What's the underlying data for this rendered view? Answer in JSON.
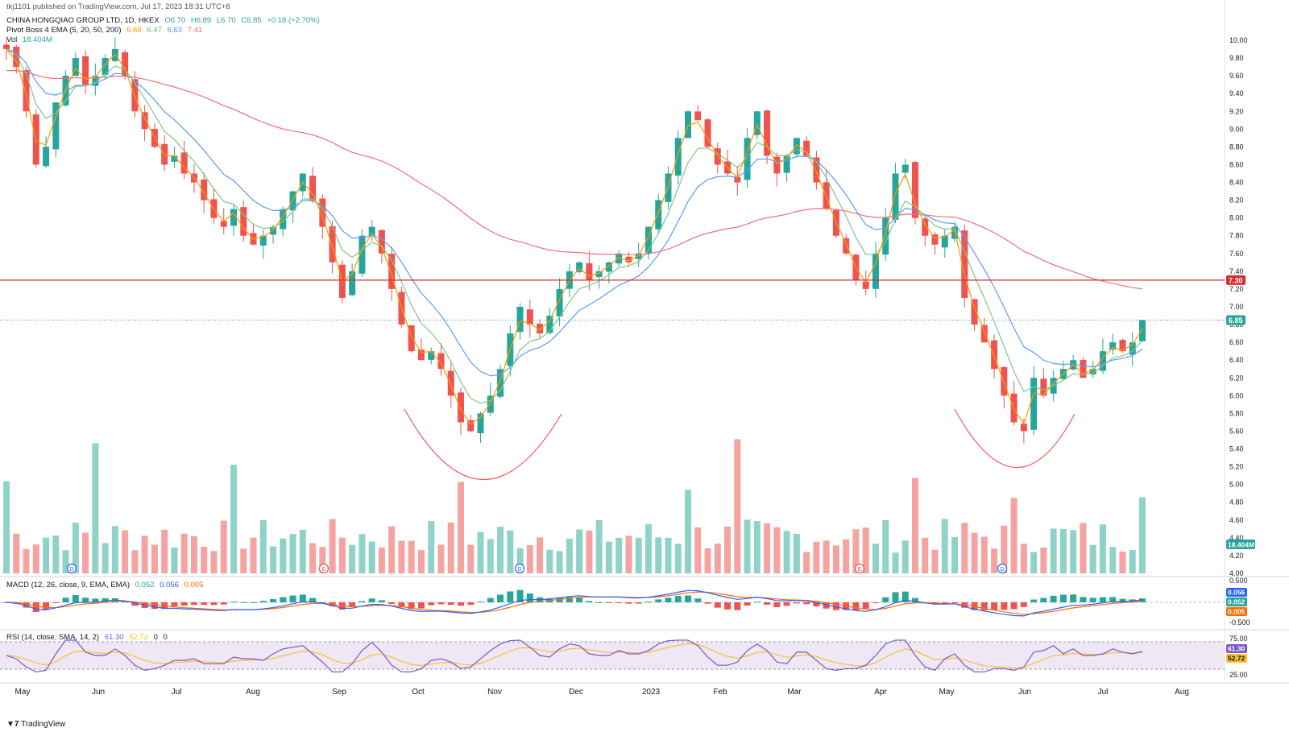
{
  "publish_line": "tkj1101 published on TradingView.com, Jul 17, 2023 18:31 UTC+8",
  "symbol_line": {
    "name": "CHINA HONGQIAO GROUP LTD, 1D, HKEX",
    "o": "O6.70",
    "h": "H6.89",
    "l": "L6.70",
    "c": "C6.85",
    "chg": "+0.18 (+2.70%)"
  },
  "ema_line": {
    "label": "Pivot Boss 4 EMA (5, 20, 50, 200)",
    "v1": "6.68",
    "v2": "6.47",
    "v3": "6.63",
    "v4": "7.41"
  },
  "vol_line": {
    "label": "Vol",
    "value": "18.404M"
  },
  "macd_line": {
    "label": "MACD (12, 26, close, 9, EMA, EMA)",
    "v1": "0.052",
    "v2": "0.056",
    "v3": "0.005"
  },
  "rsi_line": {
    "label": "RSI (14, close, SMA, 14, 2)",
    "v1": "61.30",
    "v2": "52.72",
    "v3": "0",
    "v4": "0"
  },
  "footer": "TradingView",
  "colors": {
    "up": "#26a69a",
    "down": "#ef5350",
    "ema5": "#ff9800",
    "ema20": "#81c784",
    "ema50": "#5b9cf6",
    "ema200": "#f06e75",
    "hline": "#d32f2f",
    "arc": "#f05a5a",
    "rsi_band": "#ede7f6",
    "rsi": "#7e57c2",
    "rsi_ma": "#fbc02d",
    "macd_line": "#2962ff",
    "signal_line": "#ff6d00"
  },
  "chart_data": {
    "type": "candlestick",
    "y_ticks": [
      "10.00",
      "9.80",
      "9.60",
      "9.40",
      "9.20",
      "9.00",
      "8.80",
      "8.60",
      "8.40",
      "8.20",
      "8.00",
      "7.80",
      "7.60",
      "7.40",
      "7.20",
      "7.00",
      "6.80",
      "6.60",
      "6.40",
      "6.20",
      "6.00",
      "5.80",
      "5.60",
      "5.40",
      "5.20",
      "5.00",
      "4.80",
      "4.60",
      "4.40",
      "4.20",
      "4.00"
    ],
    "ylim": [
      4.0,
      10.0
    ],
    "x_ticks": [
      "May",
      "Jun",
      "Jul",
      "Aug",
      "Sep",
      "Oct",
      "Nov",
      "Dec",
      "2023",
      "Feb",
      "Mar",
      "Apr",
      "May",
      "Jun",
      "Jul",
      "Aug"
    ],
    "horizontal_line": {
      "value": 7.3,
      "label": "7.30"
    },
    "last_price": {
      "value": 6.85,
      "label": "6.85"
    },
    "volume_label": "18.404M",
    "macd_ticks": [
      "0.500",
      "-0.500"
    ],
    "macd_labels": [
      "0.056",
      "0.052",
      "0.005"
    ],
    "rsi_ticks": [
      "75.00",
      "25.00"
    ],
    "rsi_labels": [
      "61.30",
      "52.72"
    ],
    "event_markers": [
      "D",
      "E",
      "D",
      "E",
      "D"
    ],
    "close_path": [
      9.9,
      9.7,
      9.2,
      8.6,
      8.8,
      9.3,
      9.6,
      9.8,
      9.5,
      9.6,
      9.8,
      9.9,
      9.6,
      9.2,
      9.0,
      8.8,
      8.6,
      8.7,
      8.5,
      8.4,
      8.2,
      8.0,
      7.9,
      8.1,
      7.8,
      7.7,
      7.8,
      7.9,
      8.1,
      8.3,
      8.5,
      8.2,
      7.9,
      7.5,
      7.1,
      7.4,
      7.8,
      7.9,
      7.6,
      7.2,
      6.8,
      6.5,
      6.4,
      6.5,
      6.3,
      6.0,
      5.7,
      5.6,
      5.8,
      6.0,
      6.3,
      6.7,
      7.0,
      6.8,
      6.7,
      6.9,
      7.2,
      7.4,
      7.5,
      7.3,
      7.4,
      7.5,
      7.6,
      7.5,
      7.6,
      7.9,
      8.2,
      8.5,
      8.9,
      9.2,
      9.1,
      8.8,
      8.6,
      8.5,
      8.4,
      8.9,
      9.2,
      8.7,
      8.5,
      8.7,
      8.9,
      8.7,
      8.4,
      8.1,
      7.8,
      7.6,
      7.3,
      7.2,
      7.6,
      8.0,
      8.5,
      8.6,
      8.0,
      7.8,
      7.7,
      7.8,
      7.9,
      7.1,
      6.8,
      6.6,
      6.3,
      6.0,
      5.7,
      5.6,
      6.2,
      6.0,
      6.2,
      6.3,
      6.4,
      6.2,
      6.3,
      6.5,
      6.6,
      6.5,
      6.6,
      6.85
    ],
    "ema_series": [
      {
        "name": "EMA 5"
      },
      {
        "name": "EMA 20"
      },
      {
        "name": "EMA 50"
      },
      {
        "name": "EMA 200"
      }
    ]
  }
}
